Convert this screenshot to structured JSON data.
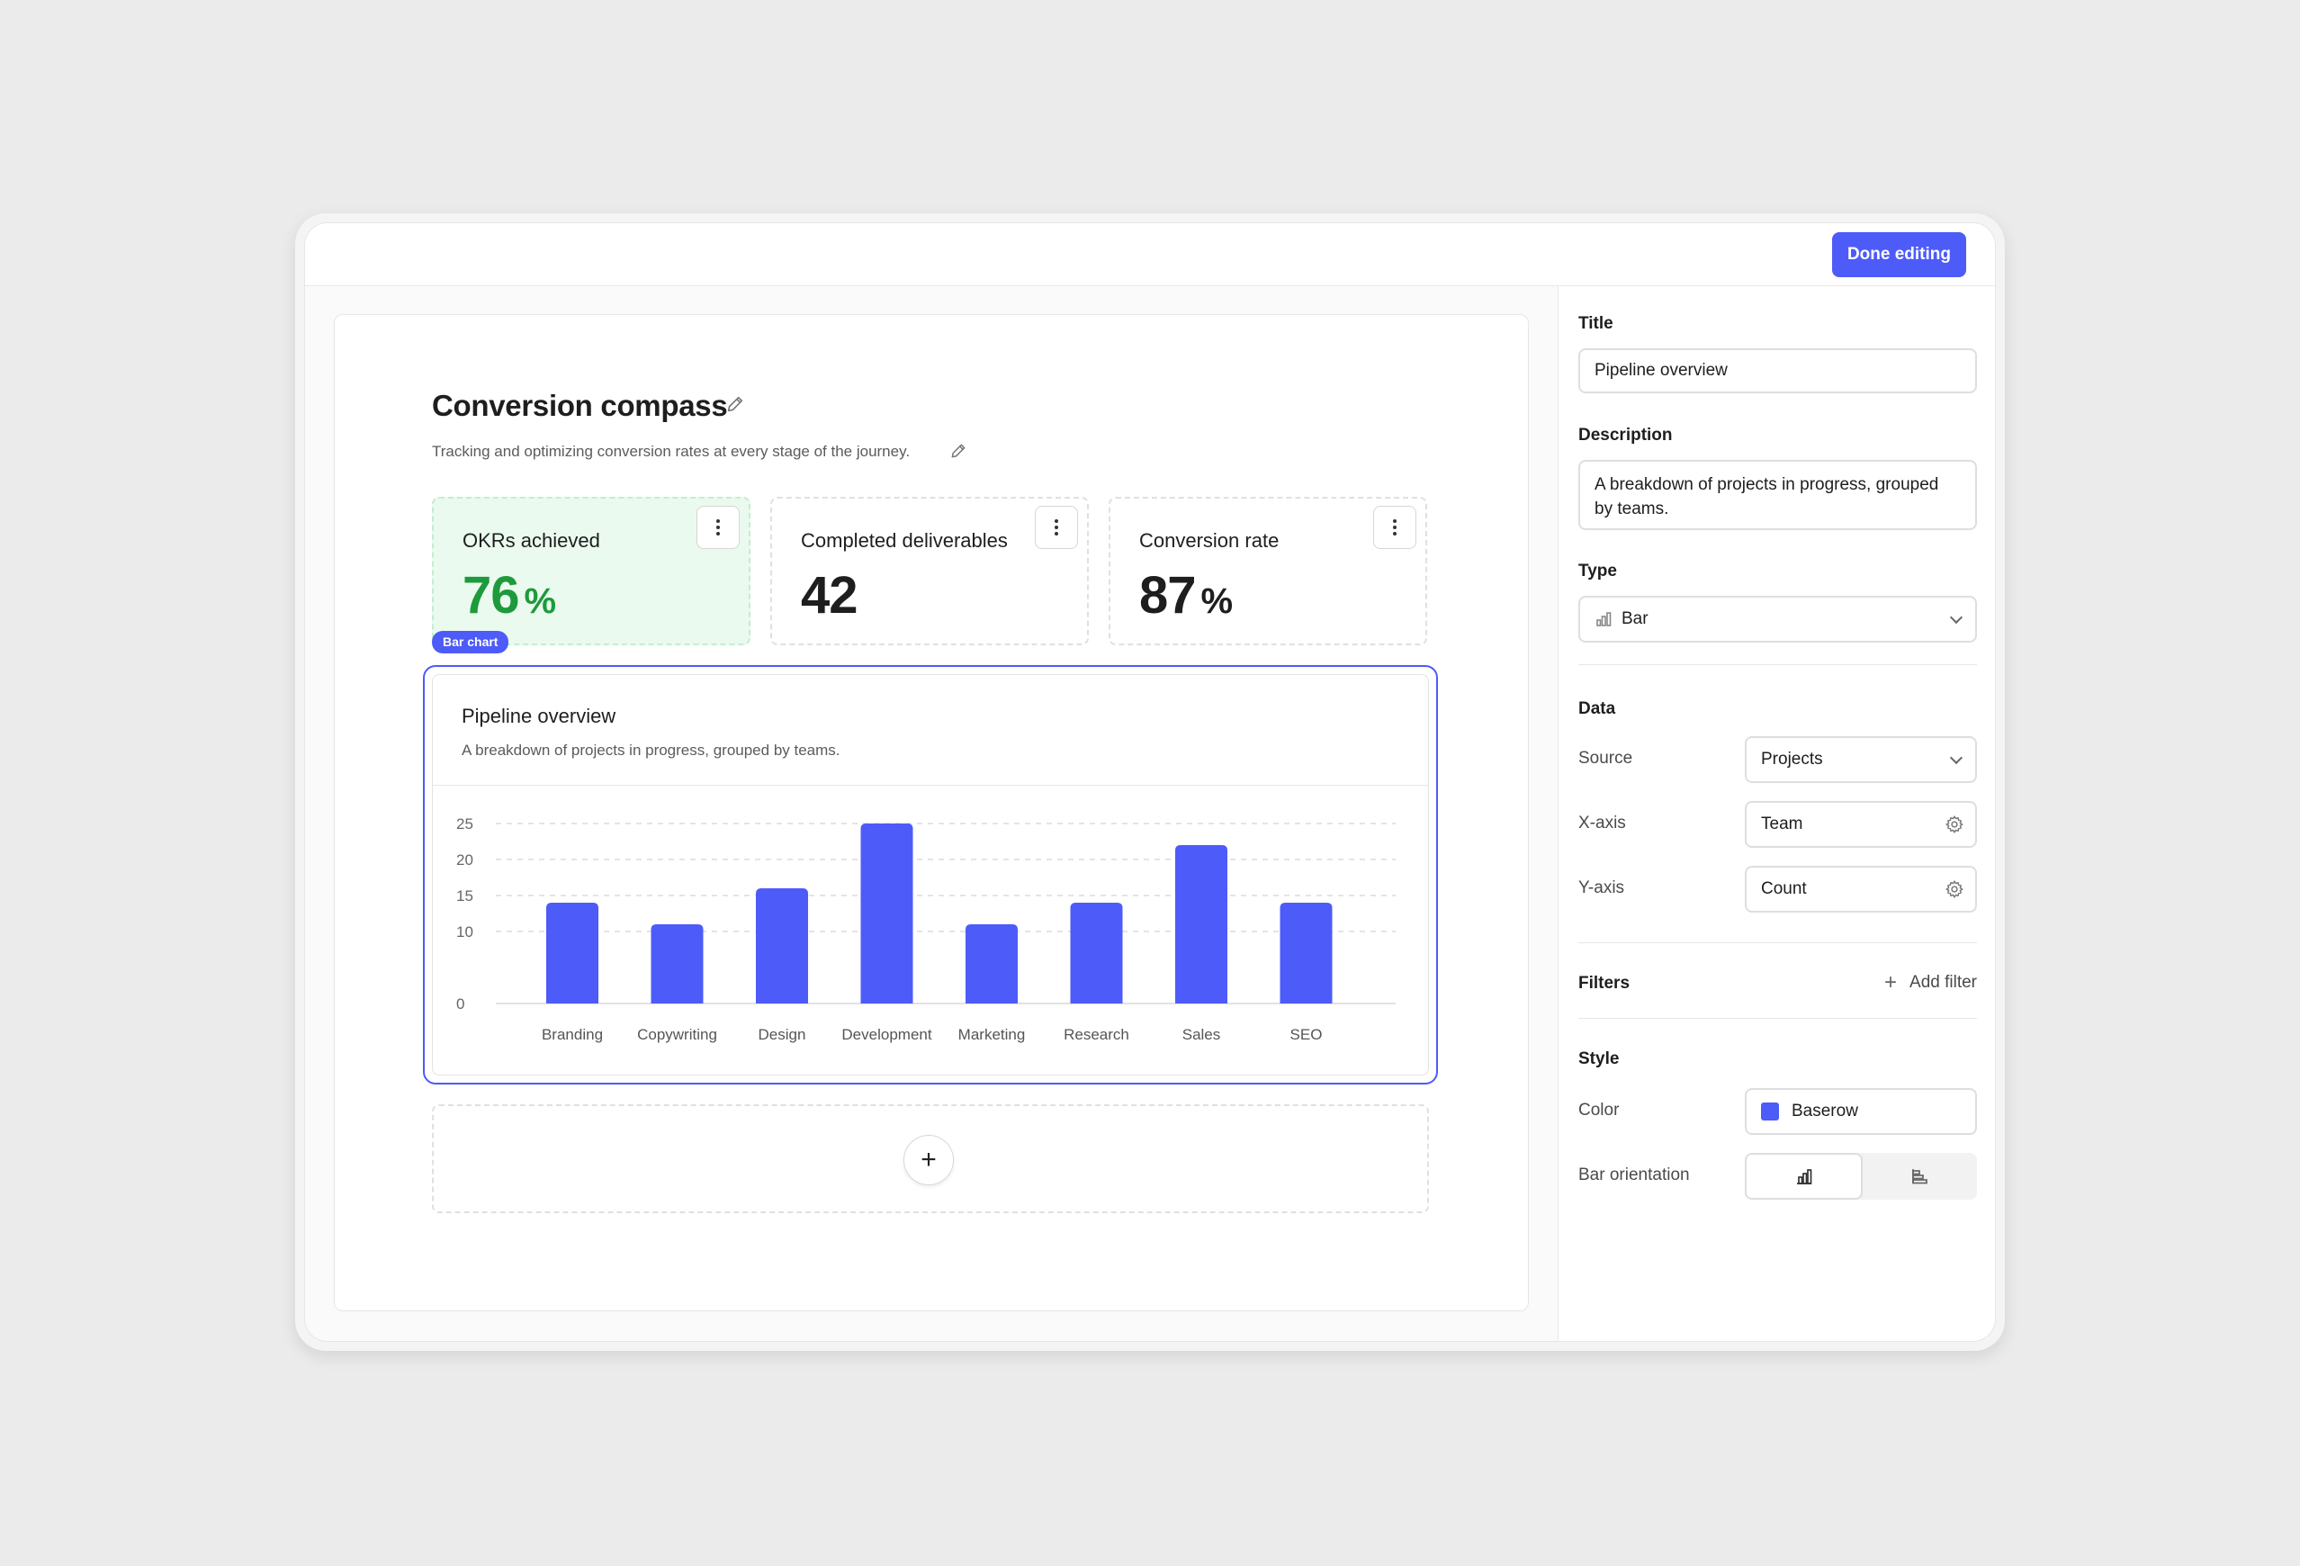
{
  "toolbar": {
    "done_label": "Done editing"
  },
  "dashboard": {
    "title": "Conversion compass",
    "description": "Tracking and optimizing conversion rates at every stage of the journey."
  },
  "stats": [
    {
      "label": "OKRs achieved",
      "value": "76",
      "unit": "%",
      "color": "#1e9a3c"
    },
    {
      "label": "Completed deliverables",
      "value": "42",
      "unit": ""
    },
    {
      "label": "Conversion rate",
      "value": "87",
      "unit": "%"
    }
  ],
  "widget": {
    "tag": "Bar chart",
    "title": "Pipeline overview",
    "description": "A breakdown of projects in progress, grouped by teams."
  },
  "chart_data": {
    "type": "bar",
    "categories": [
      "Branding",
      "Copywriting",
      "Design",
      "Development",
      "Marketing",
      "Research",
      "Sales",
      "SEO"
    ],
    "values": [
      14,
      11,
      16,
      25,
      11,
      14,
      22,
      14
    ],
    "yticks": [
      0,
      10,
      15,
      20,
      25
    ],
    "ylim": [
      0,
      25
    ],
    "grid": true,
    "color": "#4d5bf9"
  },
  "sidebar": {
    "title_label": "Title",
    "title_value": "Pipeline overview",
    "description_label": "Description",
    "description_value": "A breakdown of projects in progress, grouped by teams.",
    "type_label": "Type",
    "type_value": "Bar",
    "data_label": "Data",
    "source_label": "Source",
    "source_value": "Projects",
    "xaxis_label": "X-axis",
    "xaxis_value": "Team",
    "yaxis_label": "Y-axis",
    "yaxis_value": "Count",
    "filters_label": "Filters",
    "add_filter_label": "Add filter",
    "style_label": "Style",
    "color_label": "Color",
    "color_value": "Baserow",
    "color_hex": "#4d5bf9",
    "orientation_label": "Bar orientation",
    "orientation_selected": "vertical"
  }
}
